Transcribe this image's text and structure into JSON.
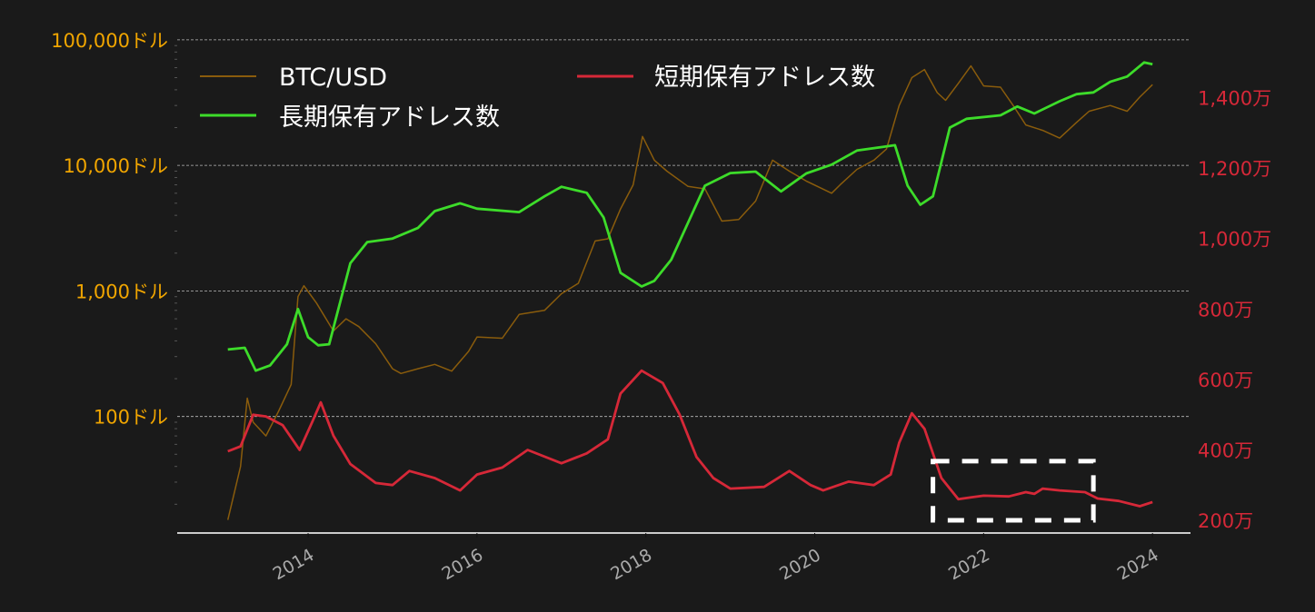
{
  "chart_data": {
    "type": "line",
    "title": "",
    "xlabel": "",
    "x_ticks": [
      2014,
      2016,
      2018,
      2020,
      2022,
      2024
    ],
    "xlim": [
      2012.45,
      2024.45
    ],
    "left_axis": {
      "scale": "log",
      "ylim": [
        11.8,
        126000
      ],
      "ticks": [
        100,
        1000,
        10000,
        100000
      ],
      "tick_labels": [
        "100ドル",
        "1,000ドル",
        "10,000ドル",
        "100,000ドル"
      ],
      "color": "#f0a500"
    },
    "right_axis": {
      "scale": "linear",
      "ylim": [
        164,
        1600
      ],
      "ticks": [
        200,
        400,
        600,
        800,
        1000,
        1200,
        1400
      ],
      "tick_labels": [
        "200万",
        "400万",
        "600万",
        "800万",
        "1,000万",
        "1,200万",
        "1,400万"
      ],
      "color": "#d62838"
    },
    "grid": "horizontal-dashed-left-major",
    "legend_position": "top-left",
    "series": [
      {
        "name": "BTC/USD",
        "axis": "left",
        "color": "#8a5c0c",
        "x": [
          2013.05,
          2013.2,
          2013.28,
          2013.35,
          2013.5,
          2013.65,
          2013.8,
          2013.88,
          2013.95,
          2014.1,
          2014.3,
          2014.45,
          2014.6,
          2014.8,
          2015.0,
          2015.1,
          2015.3,
          2015.5,
          2015.7,
          2015.9,
          2016.0,
          2016.3,
          2016.5,
          2016.8,
          2017.0,
          2017.2,
          2017.4,
          2017.55,
          2017.7,
          2017.85,
          2017.96,
          2018.1,
          2018.25,
          2018.5,
          2018.7,
          2018.9,
          2019.1,
          2019.3,
          2019.5,
          2019.7,
          2019.9,
          2020.2,
          2020.3,
          2020.5,
          2020.7,
          2020.85,
          2021.0,
          2021.15,
          2021.3,
          2021.45,
          2021.55,
          2021.7,
          2021.85,
          2022.0,
          2022.2,
          2022.35,
          2022.5,
          2022.7,
          2022.9,
          2023.1,
          2023.25,
          2023.5,
          2023.7,
          2023.85,
          2024.0
        ],
        "y": [
          15,
          40,
          140,
          90,
          70,
          110,
          180,
          900,
          1100,
          800,
          480,
          600,
          520,
          380,
          240,
          220,
          240,
          260,
          230,
          330,
          430,
          420,
          650,
          700,
          950,
          1150,
          2500,
          2600,
          4500,
          7000,
          17000,
          11000,
          9000,
          6800,
          6500,
          3600,
          3700,
          5200,
          11000,
          9000,
          7500,
          6000,
          7000,
          9300,
          11000,
          13500,
          30000,
          50000,
          58000,
          38000,
          33000,
          45000,
          62000,
          43000,
          42000,
          30000,
          21000,
          19000,
          16500,
          22000,
          27000,
          30000,
          27000,
          35000,
          44000
        ]
      },
      {
        "name": "長期保有アドレス数",
        "axis": "right",
        "color": "#3ddc2a",
        "x": [
          2013.05,
          2013.25,
          2013.38,
          2013.55,
          2013.75,
          2013.88,
          2014.0,
          2014.12,
          2014.25,
          2014.5,
          2014.7,
          2015.0,
          2015.3,
          2015.5,
          2015.8,
          2016.0,
          2016.5,
          2016.8,
          2017.0,
          2017.3,
          2017.5,
          2017.7,
          2017.95,
          2018.1,
          2018.3,
          2018.5,
          2018.7,
          2019.0,
          2019.3,
          2019.6,
          2019.9,
          2020.2,
          2020.5,
          2020.8,
          2020.95,
          2021.1,
          2021.25,
          2021.4,
          2021.6,
          2021.8,
          2022.2,
          2022.4,
          2022.6,
          2022.9,
          2023.1,
          2023.3,
          2023.5,
          2023.7,
          2023.9,
          2024.0
        ],
        "y": [
          685,
          690,
          625,
          640,
          700,
          800,
          720,
          697,
          700,
          930,
          990,
          1000,
          1030,
          1078,
          1100,
          1085,
          1075,
          1120,
          1147,
          1130,
          1060,
          903,
          864,
          880,
          940,
          1045,
          1150,
          1186,
          1190,
          1134,
          1185,
          1210,
          1250,
          1260,
          1265,
          1150,
          1096,
          1120,
          1315,
          1340,
          1350,
          1375,
          1355,
          1390,
          1410,
          1415,
          1445,
          1460,
          1500,
          1495
        ]
      },
      {
        "name": "短期保有アドレス数",
        "axis": "right",
        "color": "#d62838",
        "x": [
          2013.05,
          2013.2,
          2013.35,
          2013.5,
          2013.7,
          2013.9,
          2014.05,
          2014.15,
          2014.3,
          2014.5,
          2014.8,
          2015.0,
          2015.2,
          2015.5,
          2015.8,
          2016.0,
          2016.3,
          2016.6,
          2017.0,
          2017.3,
          2017.55,
          2017.7,
          2017.95,
          2018.2,
          2018.4,
          2018.6,
          2018.8,
          2019.0,
          2019.4,
          2019.7,
          2019.95,
          2020.1,
          2020.4,
          2020.7,
          2020.9,
          2021.0,
          2021.15,
          2021.3,
          2021.5,
          2021.7,
          2021.85,
          2022.0,
          2022.3,
          2022.5,
          2022.6,
          2022.7,
          2022.9,
          2023.2,
          2023.35,
          2023.6,
          2023.85,
          2024.0
        ],
        "y": [
          396,
          410,
          500,
          495,
          470,
          400,
          480,
          535,
          440,
          360,
          306,
          300,
          340,
          320,
          285,
          330,
          350,
          400,
          362,
          390,
          430,
          560,
          625,
          590,
          500,
          380,
          320,
          290,
          295,
          340,
          300,
          285,
          310,
          300,
          330,
          420,
          504,
          460,
          320,
          260,
          265,
          270,
          268,
          280,
          275,
          290,
          285,
          280,
          262,
          255,
          240,
          252
        ]
      }
    ],
    "annotation": {
      "type": "dashed-rectangle",
      "x_range": [
        2021.4,
        2023.3
      ],
      "y_range_right": [
        200,
        368
      ],
      "color": "#ffffff"
    }
  }
}
